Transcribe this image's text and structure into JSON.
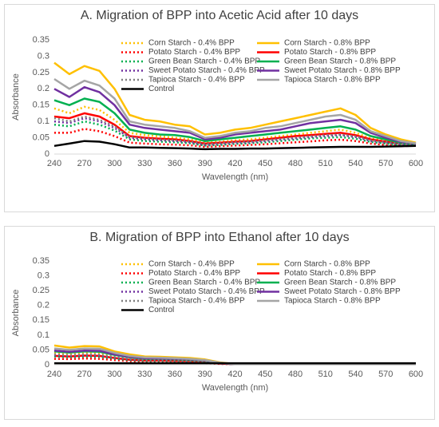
{
  "chart_data": [
    {
      "type": "line",
      "title": "A. Migration of BPP into Acetic Acid after 10 days",
      "x_label": "Wavelength (nm)",
      "y_label": "Absorbance",
      "x": [
        240,
        255,
        270,
        285,
        300,
        315,
        330,
        345,
        360,
        375,
        390,
        405,
        420,
        435,
        450,
        465,
        480,
        495,
        510,
        525,
        540,
        555,
        570,
        585,
        600
      ],
      "xlim": [
        240,
        600
      ],
      "xticks": [
        240,
        270,
        300,
        330,
        360,
        390,
        420,
        450,
        480,
        510,
        540,
        570,
        600
      ],
      "ylim": [
        0,
        0.35
      ],
      "yticks": [
        0,
        0.05,
        0.1,
        0.15,
        0.2,
        0.25,
        0.3,
        0.35
      ],
      "grid": false,
      "series": [
        {
          "name": "Corn Starch - 0.4% BPP",
          "color": "#ffc000",
          "style": "dotted",
          "values": [
            0.14,
            0.125,
            0.145,
            0.135,
            0.105,
            0.065,
            0.058,
            0.054,
            0.05,
            0.045,
            0.035,
            0.038,
            0.042,
            0.045,
            0.05,
            0.055,
            0.06,
            0.065,
            0.07,
            0.075,
            0.065,
            0.048,
            0.04,
            0.033,
            0.03
          ]
        },
        {
          "name": "Corn Starch - 0.8% BPP",
          "color": "#ffc000",
          "style": "solid",
          "values": [
            0.28,
            0.245,
            0.27,
            0.255,
            0.2,
            0.12,
            0.105,
            0.1,
            0.09,
            0.085,
            0.06,
            0.065,
            0.075,
            0.08,
            0.09,
            0.1,
            0.11,
            0.12,
            0.13,
            0.14,
            0.12,
            0.08,
            0.06,
            0.045,
            0.035
          ]
        },
        {
          "name": "Potato Starch - 0.4% BPP",
          "color": "#ff0000",
          "style": "dotted",
          "values": [
            0.065,
            0.065,
            0.077,
            0.07,
            0.055,
            0.035,
            0.032,
            0.03,
            0.029,
            0.027,
            0.022,
            0.024,
            0.026,
            0.028,
            0.03,
            0.033,
            0.036,
            0.039,
            0.042,
            0.044,
            0.04,
            0.032,
            0.028,
            0.026,
            0.025
          ]
        },
        {
          "name": "Potato Starch - 0.8% BPP",
          "color": "#ff0000",
          "style": "solid",
          "values": [
            0.115,
            0.11,
            0.125,
            0.115,
            0.09,
            0.055,
            0.05,
            0.047,
            0.045,
            0.04,
            0.032,
            0.035,
            0.038,
            0.04,
            0.045,
            0.05,
            0.055,
            0.058,
            0.062,
            0.065,
            0.058,
            0.045,
            0.038,
            0.032,
            0.03
          ]
        },
        {
          "name": "Green Bean Starch - 0.4% BPP",
          "color": "#00b050",
          "style": "dotted",
          "values": [
            0.09,
            0.085,
            0.1,
            0.09,
            0.072,
            0.045,
            0.04,
            0.038,
            0.036,
            0.033,
            0.026,
            0.028,
            0.031,
            0.033,
            0.036,
            0.04,
            0.044,
            0.048,
            0.05,
            0.052,
            0.047,
            0.037,
            0.032,
            0.028,
            0.027
          ]
        },
        {
          "name": "Green Bean Starch - 0.8% BPP",
          "color": "#00b050",
          "style": "solid",
          "values": [
            0.165,
            0.15,
            0.17,
            0.16,
            0.125,
            0.075,
            0.065,
            0.06,
            0.058,
            0.052,
            0.04,
            0.045,
            0.05,
            0.055,
            0.06,
            0.065,
            0.07,
            0.075,
            0.08,
            0.085,
            0.075,
            0.055,
            0.045,
            0.035,
            0.03
          ]
        },
        {
          "name": "Sweet Potato Starch - 0.4% BPP",
          "color": "#7030a0",
          "style": "dotted",
          "values": [
            0.1,
            0.095,
            0.11,
            0.1,
            0.08,
            0.05,
            0.045,
            0.042,
            0.04,
            0.036,
            0.028,
            0.031,
            0.034,
            0.036,
            0.04,
            0.044,
            0.048,
            0.052,
            0.055,
            0.058,
            0.052,
            0.04,
            0.035,
            0.03,
            0.028
          ]
        },
        {
          "name": "Sweet Potato Starch - 0.8% BPP",
          "color": "#7030a0",
          "style": "solid",
          "values": [
            0.2,
            0.175,
            0.205,
            0.19,
            0.15,
            0.09,
            0.08,
            0.075,
            0.07,
            0.065,
            0.045,
            0.05,
            0.06,
            0.065,
            0.07,
            0.075,
            0.085,
            0.095,
            0.1,
            0.105,
            0.095,
            0.065,
            0.05,
            0.038,
            0.032
          ]
        },
        {
          "name": "Tapioca Starch - 0.4% BPP",
          "color": "#7f7f7f",
          "style": "dotted",
          "values": [
            0.11,
            0.1,
            0.115,
            0.105,
            0.085,
            0.052,
            0.047,
            0.044,
            0.042,
            0.038,
            0.03,
            0.033,
            0.036,
            0.038,
            0.042,
            0.046,
            0.05,
            0.054,
            0.058,
            0.06,
            0.054,
            0.042,
            0.036,
            0.031,
            0.029
          ]
        },
        {
          "name": "Tapioca Starch - 0.8% BPP",
          "color": "#a5a5a5",
          "style": "solid",
          "values": [
            0.23,
            0.2,
            0.225,
            0.21,
            0.17,
            0.1,
            0.09,
            0.085,
            0.08,
            0.07,
            0.05,
            0.055,
            0.065,
            0.07,
            0.08,
            0.085,
            0.095,
            0.105,
            0.115,
            0.12,
            0.105,
            0.07,
            0.055,
            0.04,
            0.033
          ]
        },
        {
          "name": "Control",
          "color": "#000000",
          "style": "solid",
          "values": [
            0.025,
            0.032,
            0.04,
            0.038,
            0.03,
            0.02,
            0.02,
            0.019,
            0.018,
            0.017,
            0.015,
            0.016,
            0.016,
            0.017,
            0.017,
            0.018,
            0.019,
            0.02,
            0.021,
            0.022,
            0.022,
            0.022,
            0.023,
            0.024,
            0.025
          ]
        }
      ]
    },
    {
      "type": "line",
      "title": "B. Migration of BPP into Ethanol after 10 days",
      "x_label": "Wavelength (nm)",
      "y_label": "Absorbance",
      "x": [
        240,
        255,
        270,
        285,
        300,
        315,
        330,
        345,
        360,
        375,
        390,
        405,
        420,
        435,
        450,
        465,
        480,
        495,
        510,
        525,
        540,
        555,
        570,
        585,
        600
      ],
      "xlim": [
        240,
        600
      ],
      "xticks": [
        240,
        270,
        300,
        330,
        360,
        390,
        420,
        450,
        480,
        510,
        540,
        570,
        600
      ],
      "ylim": [
        0,
        0.35
      ],
      "yticks": [
        0,
        0.05,
        0.1,
        0.15,
        0.2,
        0.25,
        0.3,
        0.35
      ],
      "grid": false,
      "series": [
        {
          "name": "Corn Starch - 0.4% BPP",
          "color": "#ffc000",
          "style": "dotted",
          "values": [
            0.04,
            0.037,
            0.04,
            0.039,
            0.03,
            0.022,
            0.018,
            0.018,
            0.016,
            0.015,
            0.012,
            0.005,
            0.002,
            0.002,
            0.002,
            0.002,
            0.002,
            0.002,
            0.002,
            0.002,
            0.002,
            0.002,
            0.002,
            0.002,
            0.002
          ]
        },
        {
          "name": "Corn Starch - 0.8% BPP",
          "color": "#ffc000",
          "style": "solid",
          "values": [
            0.065,
            0.058,
            0.063,
            0.062,
            0.045,
            0.035,
            0.028,
            0.027,
            0.025,
            0.023,
            0.018,
            0.008,
            0.002,
            0.002,
            0.002,
            0.002,
            0.002,
            0.002,
            0.002,
            0.002,
            0.002,
            0.002,
            0.002,
            0.002,
            0.002
          ]
        },
        {
          "name": "Potato Starch - 0.4% BPP",
          "color": "#ff0000",
          "style": "dotted",
          "values": [
            0.02,
            0.019,
            0.021,
            0.02,
            0.016,
            0.012,
            0.01,
            0.01,
            0.009,
            0.008,
            0.006,
            0.003,
            0.002,
            0.002,
            0.002,
            0.002,
            0.002,
            0.002,
            0.002,
            0.002,
            0.002,
            0.002,
            0.002,
            0.002,
            0.002
          ]
        },
        {
          "name": "Potato Starch - 0.8% BPP",
          "color": "#ff0000",
          "style": "solid",
          "values": [
            0.03,
            0.028,
            0.031,
            0.03,
            0.023,
            0.017,
            0.014,
            0.014,
            0.013,
            0.012,
            0.009,
            0.004,
            0.002,
            0.002,
            0.002,
            0.002,
            0.002,
            0.002,
            0.002,
            0.002,
            0.002,
            0.002,
            0.002,
            0.002,
            0.002
          ]
        },
        {
          "name": "Green Bean Starch - 0.4% BPP",
          "color": "#00b050",
          "style": "dotted",
          "values": [
            0.028,
            0.026,
            0.028,
            0.027,
            0.021,
            0.016,
            0.013,
            0.013,
            0.012,
            0.011,
            0.008,
            0.004,
            0.002,
            0.002,
            0.002,
            0.002,
            0.002,
            0.002,
            0.002,
            0.002,
            0.002,
            0.002,
            0.002,
            0.002,
            0.002
          ]
        },
        {
          "name": "Green Bean Starch - 0.8% BPP",
          "color": "#00b050",
          "style": "solid",
          "values": [
            0.045,
            0.041,
            0.045,
            0.044,
            0.033,
            0.025,
            0.02,
            0.02,
            0.018,
            0.016,
            0.013,
            0.006,
            0.002,
            0.002,
            0.002,
            0.002,
            0.002,
            0.002,
            0.002,
            0.002,
            0.002,
            0.002,
            0.002,
            0.002,
            0.002
          ]
        },
        {
          "name": "Sweet Potato Starch - 0.4% BPP",
          "color": "#7030a0",
          "style": "dotted",
          "values": [
            0.032,
            0.03,
            0.032,
            0.031,
            0.024,
            0.018,
            0.015,
            0.015,
            0.014,
            0.012,
            0.009,
            0.004,
            0.002,
            0.002,
            0.002,
            0.002,
            0.002,
            0.002,
            0.002,
            0.002,
            0.002,
            0.002,
            0.002,
            0.002,
            0.002
          ]
        },
        {
          "name": "Sweet Potato Starch - 0.8% BPP",
          "color": "#7030a0",
          "style": "solid",
          "values": [
            0.048,
            0.044,
            0.048,
            0.047,
            0.035,
            0.027,
            0.022,
            0.021,
            0.02,
            0.018,
            0.014,
            0.006,
            0.002,
            0.002,
            0.002,
            0.002,
            0.002,
            0.002,
            0.002,
            0.002,
            0.002,
            0.002,
            0.002,
            0.002,
            0.002
          ]
        },
        {
          "name": "Tapioca Starch - 0.4% BPP",
          "color": "#7f7f7f",
          "style": "dotted",
          "values": [
            0.035,
            0.032,
            0.035,
            0.034,
            0.026,
            0.02,
            0.016,
            0.016,
            0.015,
            0.013,
            0.01,
            0.005,
            0.002,
            0.002,
            0.002,
            0.002,
            0.002,
            0.002,
            0.002,
            0.002,
            0.002,
            0.002,
            0.002,
            0.002,
            0.002
          ]
        },
        {
          "name": "Tapioca Starch - 0.8% BPP",
          "color": "#a5a5a5",
          "style": "solid",
          "values": [
            0.055,
            0.05,
            0.055,
            0.054,
            0.04,
            0.03,
            0.025,
            0.024,
            0.022,
            0.02,
            0.016,
            0.007,
            0.002,
            0.002,
            0.002,
            0.002,
            0.002,
            0.002,
            0.002,
            0.002,
            0.002,
            0.002,
            0.002,
            0.002,
            0.002
          ]
        },
        {
          "name": "Control",
          "color": "#000000",
          "style": "solid",
          "values": [
            0.005,
            0.005,
            0.005,
            0.005,
            0.005,
            0.005,
            0.005,
            0.005,
            0.005,
            0.005,
            0.005,
            0.005,
            0.005,
            0.005,
            0.005,
            0.005,
            0.005,
            0.005,
            0.005,
            0.005,
            0.005,
            0.005,
            0.005,
            0.005,
            0.005
          ]
        }
      ]
    }
  ]
}
